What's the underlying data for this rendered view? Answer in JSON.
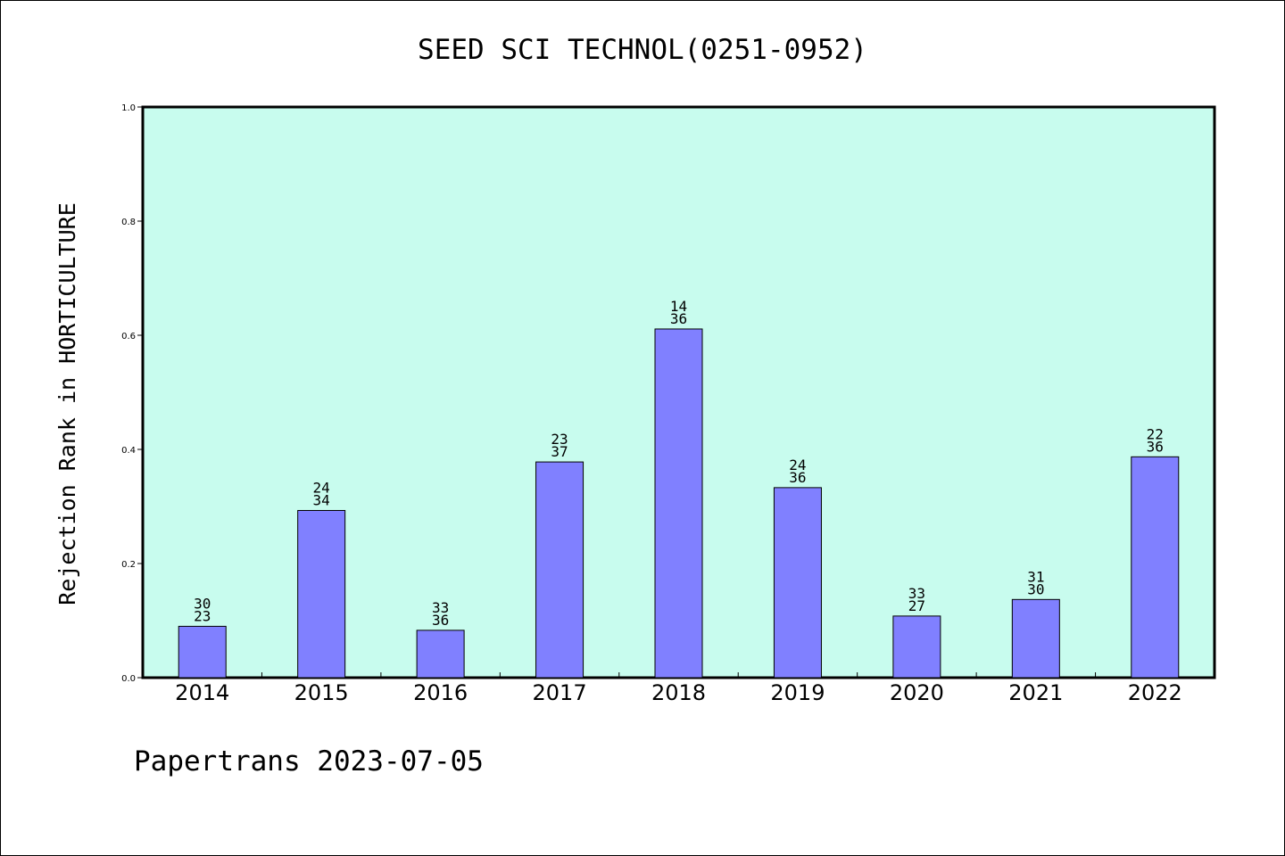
{
  "chart_data": {
    "type": "bar",
    "title": "SEED SCI TECHNOL(0251-0952)",
    "ylabel": "Rejection Rank in HORTICULTURE",
    "xlabel": "",
    "ylim": [
      0,
      1.0
    ],
    "yticks": [
      "0.0",
      "0.2",
      "0.4",
      "0.6",
      "0.8",
      "1.0"
    ],
    "categories": [
      "2014",
      "2015",
      "2016",
      "2017",
      "2018",
      "2019",
      "2020",
      "2021",
      "2022"
    ],
    "values": [
      0.09,
      0.293,
      0.083,
      0.378,
      0.611,
      0.333,
      0.108,
      0.137,
      0.387
    ],
    "label_top": [
      "30",
      "24",
      "33",
      "23",
      "14",
      "24",
      "33",
      "31",
      "22"
    ],
    "label_bottom": [
      "23",
      "34",
      "36",
      "37",
      "36",
      "36",
      "27",
      "30",
      "36"
    ],
    "grid": false,
    "legend": "none",
    "colors": {
      "plot_background": "#c8fcee",
      "bar_fill": "#8080ff",
      "bar_stroke": "#000000"
    }
  },
  "footer": "Papertrans 2023-07-05"
}
